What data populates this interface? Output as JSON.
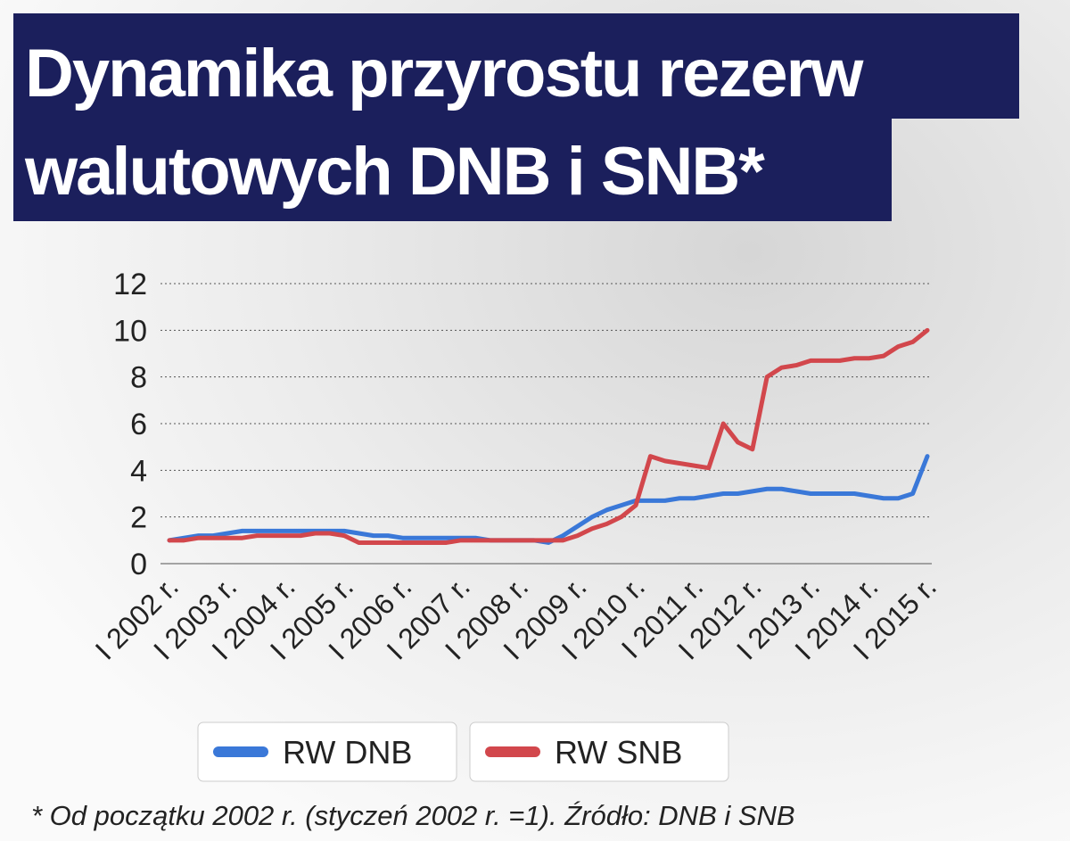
{
  "chart_data": {
    "type": "line",
    "title": [
      "Dynamika przyrostu rezerw",
      "walutowych DNB i SNB*"
    ],
    "note": "* Od początku 2002 r. (styczeń 2002 r. =1). Źródło: DNB i SNB",
    "categories": [
      "I 2002 r.",
      null,
      null,
      null,
      "I 2003 r.",
      null,
      null,
      null,
      "I 2004 r.",
      null,
      null,
      null,
      "I 2005 r.",
      null,
      null,
      null,
      "I 2006 r.",
      null,
      null,
      null,
      "I 2007 r.",
      null,
      null,
      null,
      "I 2008 r.",
      null,
      null,
      null,
      "I 2009 r.",
      null,
      null,
      null,
      "I 2010 r.",
      null,
      null,
      null,
      "I 2011 r.",
      null,
      null,
      null,
      "I 2012 r.",
      null,
      null,
      null,
      "I 2013 r.",
      null,
      null,
      null,
      "I 2014 r.",
      null,
      null,
      null,
      "I 2015 r."
    ],
    "series": [
      {
        "name": "RW DNB",
        "color": "#3a78d8",
        "values": [
          1.0,
          1.1,
          1.2,
          1.2,
          1.3,
          1.4,
          1.4,
          1.4,
          1.4,
          1.4,
          1.4,
          1.4,
          1.4,
          1.3,
          1.2,
          1.2,
          1.1,
          1.1,
          1.1,
          1.1,
          1.1,
          1.1,
          1.0,
          1.0,
          1.0,
          1.0,
          0.9,
          1.2,
          1.6,
          2.0,
          2.3,
          2.5,
          2.7,
          2.7,
          2.7,
          2.8,
          2.8,
          2.9,
          3.0,
          3.0,
          3.1,
          3.2,
          3.2,
          3.1,
          3.0,
          3.0,
          3.0,
          3.0,
          2.9,
          2.8,
          2.8,
          3.0,
          4.6
        ]
      },
      {
        "name": "RW SNB",
        "color": "#d2474c",
        "values": [
          1.0,
          1.0,
          1.1,
          1.1,
          1.1,
          1.1,
          1.2,
          1.2,
          1.2,
          1.2,
          1.3,
          1.3,
          1.2,
          0.9,
          0.9,
          0.9,
          0.9,
          0.9,
          0.9,
          0.9,
          1.0,
          1.0,
          1.0,
          1.0,
          1.0,
          1.0,
          1.0,
          1.0,
          1.2,
          1.5,
          1.7,
          2.0,
          2.5,
          4.6,
          4.4,
          4.3,
          4.2,
          4.1,
          6.0,
          5.2,
          4.9,
          8.0,
          8.4,
          8.5,
          8.7,
          8.7,
          8.7,
          8.8,
          8.8,
          8.9,
          9.3,
          9.5,
          10.0
        ]
      }
    ],
    "ylim": [
      0,
      12
    ],
    "yticks": [
      0,
      2,
      4,
      6,
      8,
      10,
      12
    ],
    "grid": true
  }
}
